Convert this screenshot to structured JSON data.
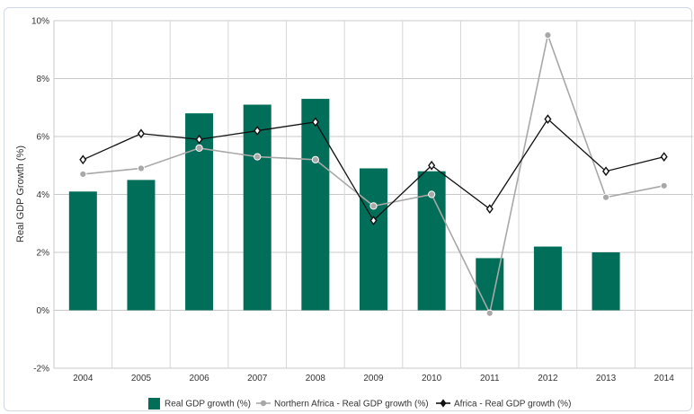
{
  "chart_data": {
    "type": "bar",
    "title": "",
    "xlabel": "",
    "ylabel": "Real GDP Growth (%)",
    "ylim": [
      -2,
      10
    ],
    "yticks": [
      -2,
      0,
      2,
      4,
      6,
      8,
      10
    ],
    "ytick_labels": [
      "-2%",
      "0%",
      "2%",
      "4%",
      "6%",
      "8%",
      "10%"
    ],
    "categories": [
      "2004",
      "2005",
      "2006",
      "2007",
      "2008",
      "2009",
      "2010",
      "2011",
      "2012",
      "2013",
      "2014"
    ],
    "grid": true,
    "legend_position": "bottom",
    "series": [
      {
        "name": "Real GDP growth (%)",
        "kind": "bar",
        "color": "#006e58",
        "values": [
          4.1,
          4.5,
          6.8,
          7.1,
          7.3,
          4.9,
          4.8,
          1.8,
          2.2,
          2.0,
          null
        ]
      },
      {
        "name": "Northern Africa - Real GDP growth (%)",
        "kind": "line",
        "marker": "circle",
        "color": "#a8a8a8",
        "values": [
          4.7,
          4.9,
          5.6,
          5.3,
          5.2,
          3.6,
          4.0,
          -0.1,
          9.5,
          3.9,
          4.3
        ]
      },
      {
        "name": "Africa - Real GDP growth (%)",
        "kind": "line",
        "marker": "diamond",
        "color": "#111111",
        "values": [
          5.2,
          6.1,
          5.9,
          6.2,
          6.5,
          3.1,
          5.0,
          3.5,
          6.6,
          4.8,
          5.3
        ]
      }
    ]
  }
}
